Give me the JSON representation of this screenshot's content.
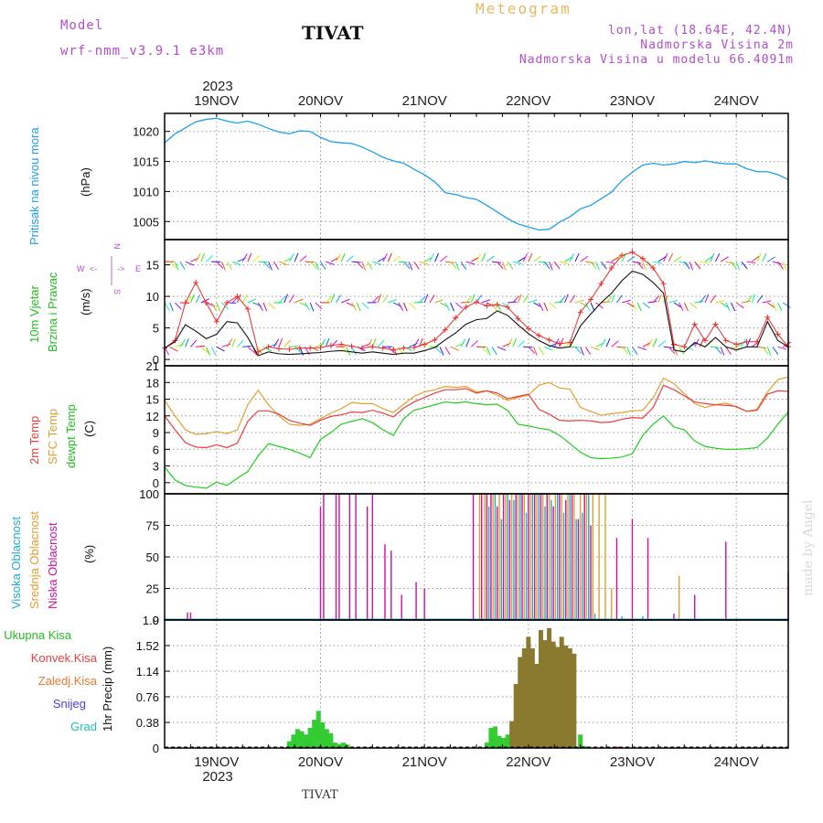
{
  "header": {
    "model_label": "Model",
    "model_name": "wrf-nmm_v3.9.1  e3km",
    "station": "TIVAT",
    "meteogram": "Meteogram",
    "lonlat": "lon,lat (18.64E, 42.4N)",
    "elevation": "Nadmorska Visina 2m",
    "model_elevation": "Nadmorska Visina u modelu 66.4091m",
    "footer_station": "TIVAT",
    "made_by": "made by Angel"
  },
  "colors": {
    "pressure": "#1ea0e6",
    "wind_speed": "#111111",
    "wind_gust": "#e83030",
    "temp2m": "#e84040",
    "sfc": "#e0a030",
    "dewpt": "#22cc22",
    "high_cloud": "#22aacc",
    "mid_cloud": "#e0a030",
    "low_cloud": "#c8149c",
    "precip_total": "#33cc33",
    "precip_conv": "#e83030",
    "precip_stratiform": "#8a7a30"
  },
  "chart_data": [
    {
      "type": "line",
      "id": "pressure",
      "ylabel": "(hPa)",
      "series_label": "Pritisak na nivou mora",
      "yticks": [
        1005,
        1010,
        1015,
        1020
      ],
      "ylim": [
        1002,
        1023
      ],
      "x": [
        0,
        0.1,
        0.2,
        0.3,
        0.4,
        0.5,
        0.6,
        0.7,
        0.8,
        0.9,
        1.0,
        1.1,
        1.2,
        1.3,
        1.4,
        1.5,
        1.6,
        1.7,
        1.8,
        1.9,
        2.0,
        2.1,
        2.2,
        2.3,
        2.4,
        2.5,
        2.6,
        2.7,
        2.8,
        2.9,
        3.0,
        3.1,
        3.2,
        3.3,
        3.4,
        3.5,
        3.6,
        3.7,
        3.8,
        3.9,
        4.0,
        4.1,
        4.2,
        4.3,
        4.4,
        4.5,
        4.6,
        4.7,
        4.8,
        4.9,
        5.0,
        5.1,
        5.2,
        5.3,
        5.4,
        5.5,
        5.6,
        5.7,
        5.8,
        5.9,
        6.0
      ],
      "values": [
        1018.1,
        1019.6,
        1020.6,
        1021.6,
        1022.0,
        1022.2,
        1021.7,
        1021.4,
        1021.7,
        1021.2,
        1020.5,
        1019.9,
        1019.6,
        1020.1,
        1020.0,
        1019.0,
        1018.3,
        1018.1,
        1018.0,
        1017.4,
        1016.6,
        1015.7,
        1015.1,
        1014.7,
        1013.7,
        1012.8,
        1011.6,
        1009.8,
        1009.5,
        1009.0,
        1008.7,
        1007.7,
        1006.6,
        1005.5,
        1004.6,
        1004.1,
        1003.6,
        1003.7,
        1004.9,
        1005.8,
        1007.1,
        1007.7,
        1008.8,
        1009.9,
        1011.8,
        1013.2,
        1014.4,
        1014.7,
        1014.4,
        1014.6,
        1015.0,
        1014.8,
        1015.1,
        1014.8,
        1014.6,
        1014.6,
        1013.8,
        1013.3,
        1013.3,
        1012.8,
        1012.0
      ]
    },
    {
      "type": "line",
      "id": "wind",
      "ylabel": "(m/s)",
      "series_label_1": "10m Vjetar",
      "series_label_2": "Brzina i Pravac",
      "yticks": [
        0,
        5,
        10,
        15
      ],
      "ylim": [
        -1,
        19
      ],
      "compass": {
        "n": "N",
        "w": "W",
        "e": "E",
        "s": "S",
        "arrow_left": "<-",
        "arrow_right": "->"
      },
      "x": [
        0,
        0.1,
        0.2,
        0.3,
        0.4,
        0.5,
        0.6,
        0.7,
        0.8,
        0.9,
        1.0,
        1.1,
        1.2,
        1.3,
        1.4,
        1.5,
        1.6,
        1.7,
        1.8,
        1.9,
        2.0,
        2.1,
        2.2,
        2.3,
        2.4,
        2.5,
        2.6,
        2.7,
        2.8,
        2.9,
        3.0,
        3.1,
        3.2,
        3.3,
        3.4,
        3.5,
        3.6,
        3.7,
        3.8,
        3.9,
        4.0,
        4.1,
        4.2,
        4.3,
        4.4,
        4.5,
        4.6,
        4.7,
        4.8,
        4.9,
        5.0,
        5.1,
        5.2,
        5.3,
        5.4,
        5.5,
        5.6,
        5.7,
        5.8,
        5.9,
        6.0
      ],
      "speed": [
        1.8,
        2.8,
        5.5,
        4.5,
        3.3,
        4.0,
        6.0,
        5.8,
        3.5,
        0.6,
        1.2,
        0.9,
        0.8,
        0.9,
        1.0,
        1.1,
        1.3,
        1.4,
        1.2,
        1.0,
        1.2,
        1.0,
        0.8,
        1.0,
        1.0,
        1.4,
        1.9,
        3.1,
        4.2,
        5.6,
        6.3,
        6.5,
        7.7,
        7.0,
        5.5,
        4.1,
        3.0,
        2.2,
        1.8,
        2.0,
        5.3,
        7.2,
        9.0,
        10.5,
        12.5,
        14.0,
        13.5,
        12.2,
        10.5,
        1.5,
        1.2,
        2.7,
        2.0,
        3.5,
        2.0,
        1.5,
        2.0,
        2.0,
        6.0,
        3.0,
        2.0
      ],
      "gust": [
        1.8,
        3.0,
        9.0,
        12.2,
        9.0,
        6.0,
        9.0,
        10.0,
        8.0,
        1.2,
        2.0,
        1.7,
        1.6,
        1.8,
        1.8,
        1.9,
        2.2,
        2.4,
        2.1,
        1.8,
        2.0,
        1.8,
        1.5,
        1.8,
        1.9,
        2.4,
        3.1,
        4.7,
        6.6,
        8.3,
        9.1,
        8.5,
        8.7,
        8.3,
        6.5,
        4.9,
        3.8,
        3.1,
        2.5,
        2.7,
        7.5,
        9.5,
        12.0,
        14.5,
        16.5,
        17.0,
        16.0,
        14.5,
        12.0,
        2.4,
        2.0,
        5.6,
        3.0,
        5.6,
        3.0,
        2.4,
        2.8,
        2.8,
        6.7,
        4.0,
        2.0
      ]
    },
    {
      "type": "line",
      "id": "temperature",
      "ylabel": "(C)",
      "series_labels": [
        "2m Temp",
        "SFC Temp",
        "dewpt Temp"
      ],
      "yticks": [
        0,
        3,
        6,
        9,
        12,
        15,
        18,
        21
      ],
      "ylim": [
        -2,
        21
      ],
      "x": [
        0,
        0.1,
        0.2,
        0.3,
        0.4,
        0.5,
        0.6,
        0.7,
        0.8,
        0.9,
        1.0,
        1.1,
        1.2,
        1.3,
        1.4,
        1.5,
        1.6,
        1.7,
        1.8,
        1.9,
        2.0,
        2.1,
        2.2,
        2.3,
        2.4,
        2.5,
        2.6,
        2.7,
        2.8,
        2.9,
        3.0,
        3.1,
        3.2,
        3.3,
        3.4,
        3.5,
        3.6,
        3.7,
        3.8,
        3.9,
        4.0,
        4.1,
        4.2,
        4.3,
        4.4,
        4.5,
        4.6,
        4.7,
        4.8,
        4.9,
        5.0,
        5.1,
        5.2,
        5.3,
        5.4,
        5.5,
        5.6,
        5.7,
        5.8,
        5.9,
        6.0
      ],
      "series": [
        {
          "name": "2m Temp",
          "values": [
            12.0,
            9.5,
            7.2,
            6.4,
            6.3,
            6.8,
            6.3,
            7.1,
            11.0,
            12.9,
            12.9,
            12.3,
            11.2,
            10.7,
            10.3,
            11.2,
            11.9,
            12.2,
            12.7,
            12.6,
            13.0,
            12.5,
            11.8,
            13.4,
            14.5,
            15.3,
            16.1,
            16.7,
            16.7,
            16.9,
            16.1,
            16.5,
            16.1,
            15.1,
            15.5,
            15.9,
            13.2,
            12.3,
            11.2,
            11.1,
            11.2,
            11.1,
            10.8,
            10.9,
            11.4,
            11.7,
            11.6,
            13.5,
            17.5,
            16.7,
            15.6,
            14.5,
            14.2,
            14.0,
            13.9,
            13.7,
            12.8,
            13.0,
            15.9,
            16.5,
            16.4
          ]
        },
        {
          "name": "SFC Temp",
          "values": [
            14.8,
            12.0,
            9.5,
            8.7,
            8.8,
            9.2,
            8.8,
            9.5,
            14.0,
            16.6,
            14.0,
            12.0,
            10.5,
            10.3,
            10.5,
            11.5,
            12.5,
            13.3,
            14.4,
            14.2,
            14.2,
            13.3,
            12.6,
            14.1,
            15.5,
            16.3,
            16.7,
            17.3,
            17.1,
            17.3,
            16.3,
            16.5,
            15.7,
            14.8,
            15.3,
            15.7,
            17.5,
            18.0,
            17.0,
            16.8,
            13.5,
            12.8,
            12.1,
            12.4,
            12.6,
            12.9,
            13.0,
            15.2,
            18.8,
            17.8,
            16.0,
            14.2,
            13.5,
            14.0,
            14.3,
            13.6,
            12.8,
            13.2,
            16.3,
            18.5,
            19.0
          ]
        },
        {
          "name": "dewpt Temp",
          "values": [
            2.8,
            0.5,
            -0.5,
            -0.8,
            -1.0,
            0.1,
            -0.5,
            0.8,
            2.0,
            4.8,
            7.0,
            6.5,
            6.0,
            5.3,
            4.5,
            7.8,
            9.0,
            10.5,
            11.0,
            11.5,
            10.8,
            9.5,
            8.5,
            11.5,
            13.0,
            13.5,
            14.0,
            14.5,
            14.3,
            14.5,
            14.2,
            14.0,
            14.1,
            13.0,
            10.5,
            10.2,
            9.8,
            9.5,
            8.5,
            7.0,
            5.5,
            4.5,
            4.3,
            4.4,
            4.6,
            5.2,
            8.5,
            10.5,
            12.0,
            10.0,
            9.5,
            7.5,
            6.5,
            6.2,
            6.0,
            6.0,
            6.1,
            6.3,
            8.0,
            10.5,
            12.7
          ]
        }
      ]
    },
    {
      "type": "bar",
      "id": "cloud",
      "ylabel": "(%)",
      "series_labels": [
        "Visoka Oblacnost",
        "Srednja Oblacnost",
        "Niska Oblacnost"
      ],
      "yticks": [
        0,
        25,
        50,
        75,
        100
      ],
      "ylim": [
        0,
        100
      ],
      "series": [
        {
          "name": "Niska Oblacnost",
          "x": [
            0.22,
            0.25,
            1.5,
            1.53,
            1.65,
            1.68,
            1.78,
            1.84,
            1.95,
            2.0,
            2.12,
            2.18,
            2.28,
            2.42,
            2.5,
            2.97,
            3.05,
            3.1,
            3.14,
            3.2,
            3.26,
            3.32,
            3.38,
            3.44,
            3.5,
            3.56,
            3.62,
            3.68,
            3.74,
            3.8,
            3.86,
            3.92,
            3.98,
            4.04,
            4.1,
            4.35,
            4.5,
            4.65,
            4.9,
            5.1,
            5.4,
            6.0
          ],
          "values": [
            6,
            6,
            90,
            100,
            100,
            100,
            100,
            100,
            90,
            100,
            60,
            55,
            20,
            30,
            25,
            100,
            100,
            100,
            100,
            90,
            100,
            95,
            100,
            100,
            100,
            100,
            100,
            100,
            90,
            100,
            95,
            100,
            80,
            100,
            75,
            65,
            80,
            65,
            5,
            20,
            62,
            38
          ]
        },
        {
          "name": "Srednja Oblacnost",
          "x": [
            3.03,
            3.08,
            3.16,
            3.22,
            3.28,
            3.34,
            3.4,
            3.46,
            3.52,
            3.58,
            3.64,
            3.7,
            3.76,
            3.82,
            3.88,
            3.94,
            4.0,
            4.06,
            4.12,
            4.18,
            4.24,
            4.3,
            4.95
          ],
          "values": [
            100,
            100,
            100,
            100,
            100,
            100,
            100,
            100,
            100,
            100,
            100,
            100,
            100,
            100,
            100,
            100,
            100,
            100,
            100,
            100,
            100,
            25,
            35
          ]
        },
        {
          "name": "Visoka Oblacnost",
          "x": [
            3.12,
            3.18,
            3.24,
            3.3,
            3.36,
            3.42,
            3.48,
            3.54,
            3.6,
            3.66,
            3.72,
            3.78,
            3.84,
            3.9,
            3.96,
            4.02,
            4.08,
            4.14,
            4.4,
            4.6
          ],
          "values": [
            90,
            100,
            80,
            100,
            95,
            100,
            85,
            100,
            100,
            90,
            95,
            100,
            85,
            100,
            80,
            85,
            100,
            5,
            3,
            3
          ]
        }
      ]
    },
    {
      "type": "bar",
      "id": "precip",
      "ylabel": "1hr Precip (mm)",
      "series_labels": [
        "Ukupna Kisa",
        "Konvek.Kisa",
        "Zaledj.Kisa",
        "Snijeg",
        "Grad"
      ],
      "yticks": [
        0,
        0.38,
        0.76,
        1.14,
        1.52,
        1.9
      ],
      "ytick_labels": [
        "0",
        "0.38",
        "0.76",
        "1.14",
        "1.52",
        "1.9"
      ],
      "ylim": [
        0,
        1.9
      ],
      "series": [
        {
          "name": "Ukupna Kisa",
          "x": [
            1.2,
            1.24,
            1.28,
            1.32,
            1.36,
            1.4,
            1.44,
            1.48,
            1.52,
            1.56,
            1.6,
            1.64,
            1.68,
            1.72,
            1.76,
            3.1,
            3.14,
            3.18,
            3.22,
            3.26,
            3.3,
            3.34,
            3.38,
            3.42,
            3.46,
            3.5,
            3.54,
            3.58,
            3.62,
            3.66,
            3.7,
            3.74,
            3.78,
            3.82,
            3.86,
            3.9,
            3.94,
            4.0,
            4.04
          ],
          "values": [
            0.1,
            0.2,
            0.28,
            0.25,
            0.2,
            0.3,
            0.42,
            0.55,
            0.38,
            0.28,
            0.22,
            0.08,
            0.06,
            0.08,
            0.05,
            0.08,
            0.3,
            0.32,
            0.18,
            0.15,
            0.2,
            0.4,
            0.95,
            1.35,
            1.48,
            1.65,
            1.48,
            1.25,
            1.75,
            1.6,
            1.78,
            1.58,
            1.5,
            1.65,
            1.52,
            1.48,
            1.4,
            0.2,
            0.03
          ]
        },
        {
          "name": "Konvek.Kisa",
          "x": [
            4.36
          ],
          "values": [
            0.02
          ]
        }
      ]
    }
  ],
  "xaxis": {
    "year_top": "2023",
    "year_bottom": "2023",
    "days": [
      "19NOV",
      "20NOV",
      "21NOV",
      "22NOV",
      "23NOV",
      "24NOV"
    ],
    "day_x": [
      0.5,
      1.5,
      2.5,
      3.5,
      4.5,
      5.5
    ]
  }
}
